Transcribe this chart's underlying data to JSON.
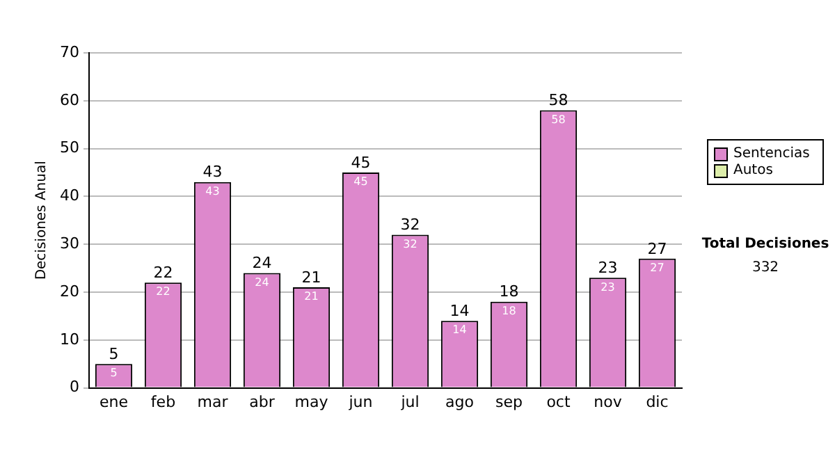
{
  "chart_data": {
    "type": "bar",
    "ylabel": "Decisiones Anual",
    "categories": [
      "ene",
      "feb",
      "mar",
      "abr",
      "may",
      "jun",
      "jul",
      "ago",
      "sep",
      "oct",
      "nov",
      "dic"
    ],
    "series": [
      {
        "name": "Sentencias",
        "color": "#dd88cc",
        "values": [
          5,
          22,
          43,
          24,
          21,
          45,
          32,
          14,
          18,
          58,
          23,
          27
        ],
        "value_labels": [
          "5",
          "22",
          "43",
          "24",
          "21",
          "45",
          "32",
          "14",
          "18",
          "58",
          "23",
          "27"
        ]
      },
      {
        "name": "Autos",
        "color": "#ddeeaa",
        "values": [
          0,
          0,
          0,
          0,
          0,
          0,
          0,
          0,
          0,
          0,
          0,
          0
        ]
      }
    ],
    "stacked": true,
    "totals": [
      "5",
      "22",
      "43",
      "24",
      "21",
      "45",
      "32",
      "14",
      "18",
      "58",
      "23",
      "27"
    ],
    "ylim": [
      0,
      70
    ],
    "yticks": [
      0,
      10,
      20,
      30,
      40,
      50,
      60,
      70
    ],
    "grid": "y",
    "legend": "right",
    "annotations": [
      "Total Decisiones",
      "332"
    ]
  }
}
